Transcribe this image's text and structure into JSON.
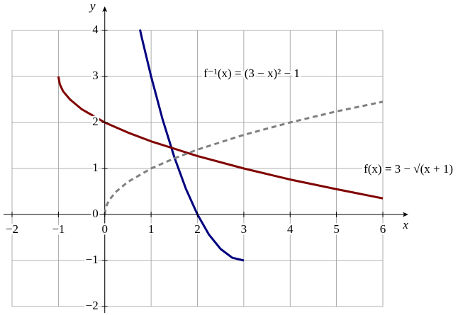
{
  "chart_data": {
    "type": "line",
    "x_label": "x",
    "y_label": "y",
    "xlim": [
      -2,
      6
    ],
    "ylim": [
      -2,
      4
    ],
    "xticks": [
      {
        "value": -2,
        "label": "−2"
      },
      {
        "value": -1,
        "label": "−1"
      },
      0,
      1,
      2,
      3,
      4,
      5,
      6
    ],
    "yticks": [
      {
        "value": -2,
        "label": "−2"
      },
      {
        "value": -1,
        "label": "−1"
      },
      0,
      1,
      2,
      3,
      4
    ],
    "grid": true,
    "series": [
      {
        "name": "f⁻¹(x) = (3 − x)² − 1",
        "color": "#000080",
        "x": [
          0.76,
          0.8,
          1,
          1.25,
          1.5,
          1.75,
          2,
          2.25,
          2.5,
          2.75,
          3
        ],
        "values": [
          4.02,
          3.84,
          3,
          2.06,
          1.25,
          0.56,
          0,
          -0.44,
          -0.75,
          -0.94,
          -1
        ]
      },
      {
        "name": "f(x) = 3 − √(x + 1)",
        "color": "#800000",
        "x": [
          -1,
          -0.97,
          -0.9,
          -0.75,
          -0.5,
          0,
          0.5,
          1,
          2,
          3,
          4,
          5,
          6
        ],
        "values": [
          3,
          2.83,
          2.68,
          2.5,
          2.29,
          2,
          1.78,
          1.59,
          1.27,
          1,
          0.76,
          0.55,
          0.35
        ]
      },
      {
        "color": "#808080",
        "dashed": true,
        "x": [
          0,
          0.02,
          0.05,
          0.1,
          0.25,
          0.5,
          1,
          1.5,
          2,
          3,
          4,
          5,
          6
        ],
        "values": [
          0,
          0.14,
          0.22,
          0.32,
          0.5,
          0.71,
          1,
          1.22,
          1.41,
          1.73,
          2,
          2.24,
          2.45
        ]
      }
    ]
  }
}
